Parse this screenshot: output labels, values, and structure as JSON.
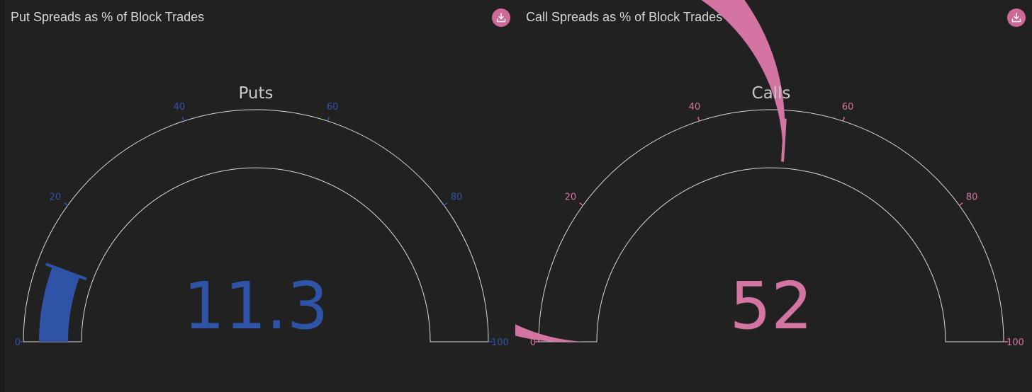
{
  "accent": "#cd6a98",
  "panels": [
    {
      "title": "Put Spreads as % of Block Trades",
      "download_icon": "download-icon",
      "color": "#2f53a6"
    },
    {
      "title": "Call Spreads as % of Block Trades",
      "download_icon": "download-icon",
      "color": "#d374a2"
    }
  ],
  "chart_data": [
    {
      "type": "gauge",
      "title": "Puts",
      "value": 11.3,
      "value_label": "11.3",
      "range": [
        0,
        100
      ],
      "ticks": [
        "0",
        "20",
        "40",
        "60",
        "80",
        "100"
      ],
      "bar_color": "#2f53a6"
    },
    {
      "type": "gauge",
      "title": "Calls",
      "value": 52,
      "value_label": "52",
      "range": [
        0,
        100
      ],
      "ticks": [
        "0",
        "20",
        "40",
        "60",
        "80",
        "100"
      ],
      "bar_color": "#d374a2"
    }
  ]
}
